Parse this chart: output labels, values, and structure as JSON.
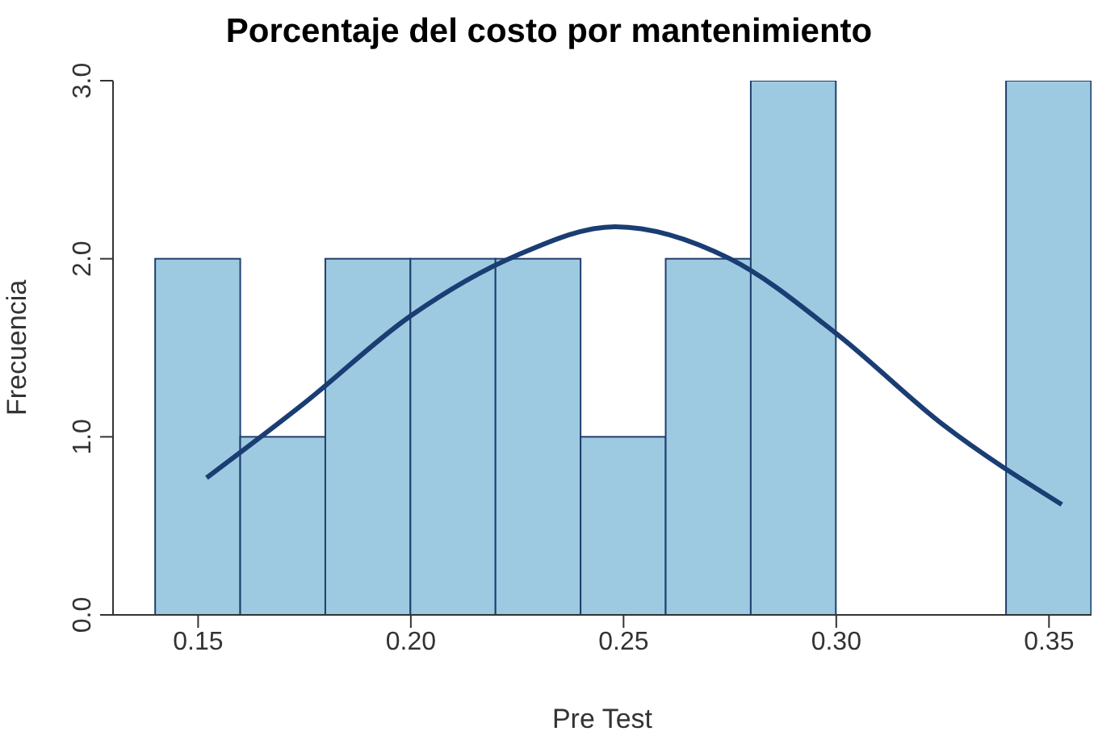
{
  "chart_data": {
    "type": "histogram",
    "title": "Porcentaje del costo por mantenimiento",
    "xlabel": "Pre Test",
    "ylabel": "Frecuencia",
    "bins": [
      0.14,
      0.16,
      0.18,
      0.2,
      0.22,
      0.24,
      0.26,
      0.28,
      0.3,
      0.32,
      0.34,
      0.36
    ],
    "values": [
      2,
      1,
      2,
      2,
      2,
      1,
      2,
      3,
      0,
      0,
      3
    ],
    "color": "#9ecae1",
    "series": [
      {
        "type": "line",
        "color": "#1a3d73",
        "x": [
          0.152,
          0.175,
          0.2,
          0.225,
          0.248,
          0.275,
          0.3,
          0.325,
          0.353
        ],
        "values": [
          0.77,
          1.19,
          1.68,
          2.02,
          2.18,
          2.0,
          1.58,
          1.07,
          0.62
        ]
      }
    ],
    "xlim": [
      0.13,
      0.36
    ],
    "xticks": [
      {
        "value": 0.15,
        "label": "0.15"
      },
      {
        "value": 0.2,
        "label": "0.20"
      },
      {
        "value": 0.25,
        "label": "0.25"
      },
      {
        "value": 0.3,
        "label": "0.30"
      },
      {
        "value": 0.35,
        "label": "0.35"
      }
    ],
    "ylim": [
      0,
      3
    ],
    "yticks": [
      {
        "value": 0,
        "label": "0.0"
      },
      {
        "value": 1,
        "label": "1.0"
      },
      {
        "value": 2,
        "label": "2.0"
      },
      {
        "value": 3,
        "label": "3.0"
      }
    ],
    "grid": false,
    "legend": false
  }
}
